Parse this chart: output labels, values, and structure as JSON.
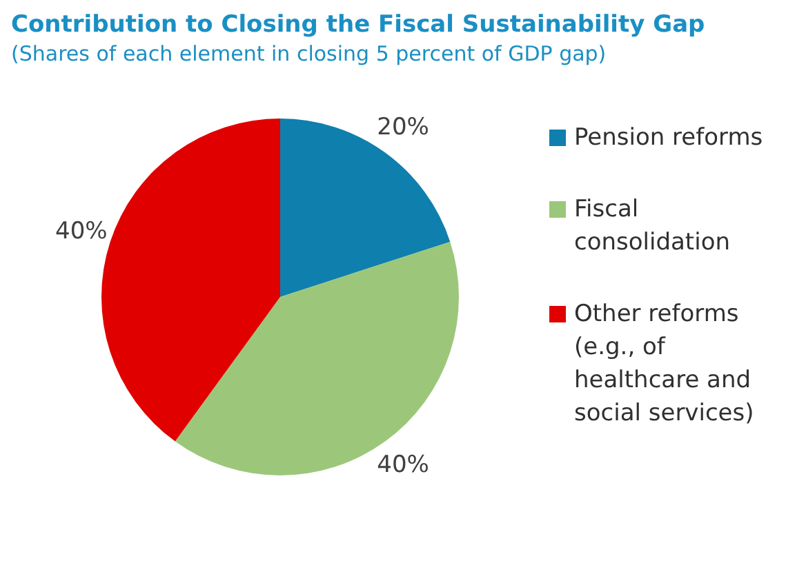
{
  "chart_data": {
    "type": "pie",
    "title": "Contribution to Closing the Fiscal Sustainability Gap",
    "subtitle": "(Shares of each element in closing 5 percent of GDP gap)",
    "categories": [
      "Pension reforms",
      "Fiscal consolidation",
      "Other reforms (e.g., of healthcare and social services)"
    ],
    "values": [
      20,
      40,
      40
    ],
    "colors": [
      "#0f7fae",
      "#9cc77a",
      "#e00000"
    ],
    "value_labels": [
      "20%",
      "40%",
      "40%"
    ],
    "legend": "right"
  }
}
